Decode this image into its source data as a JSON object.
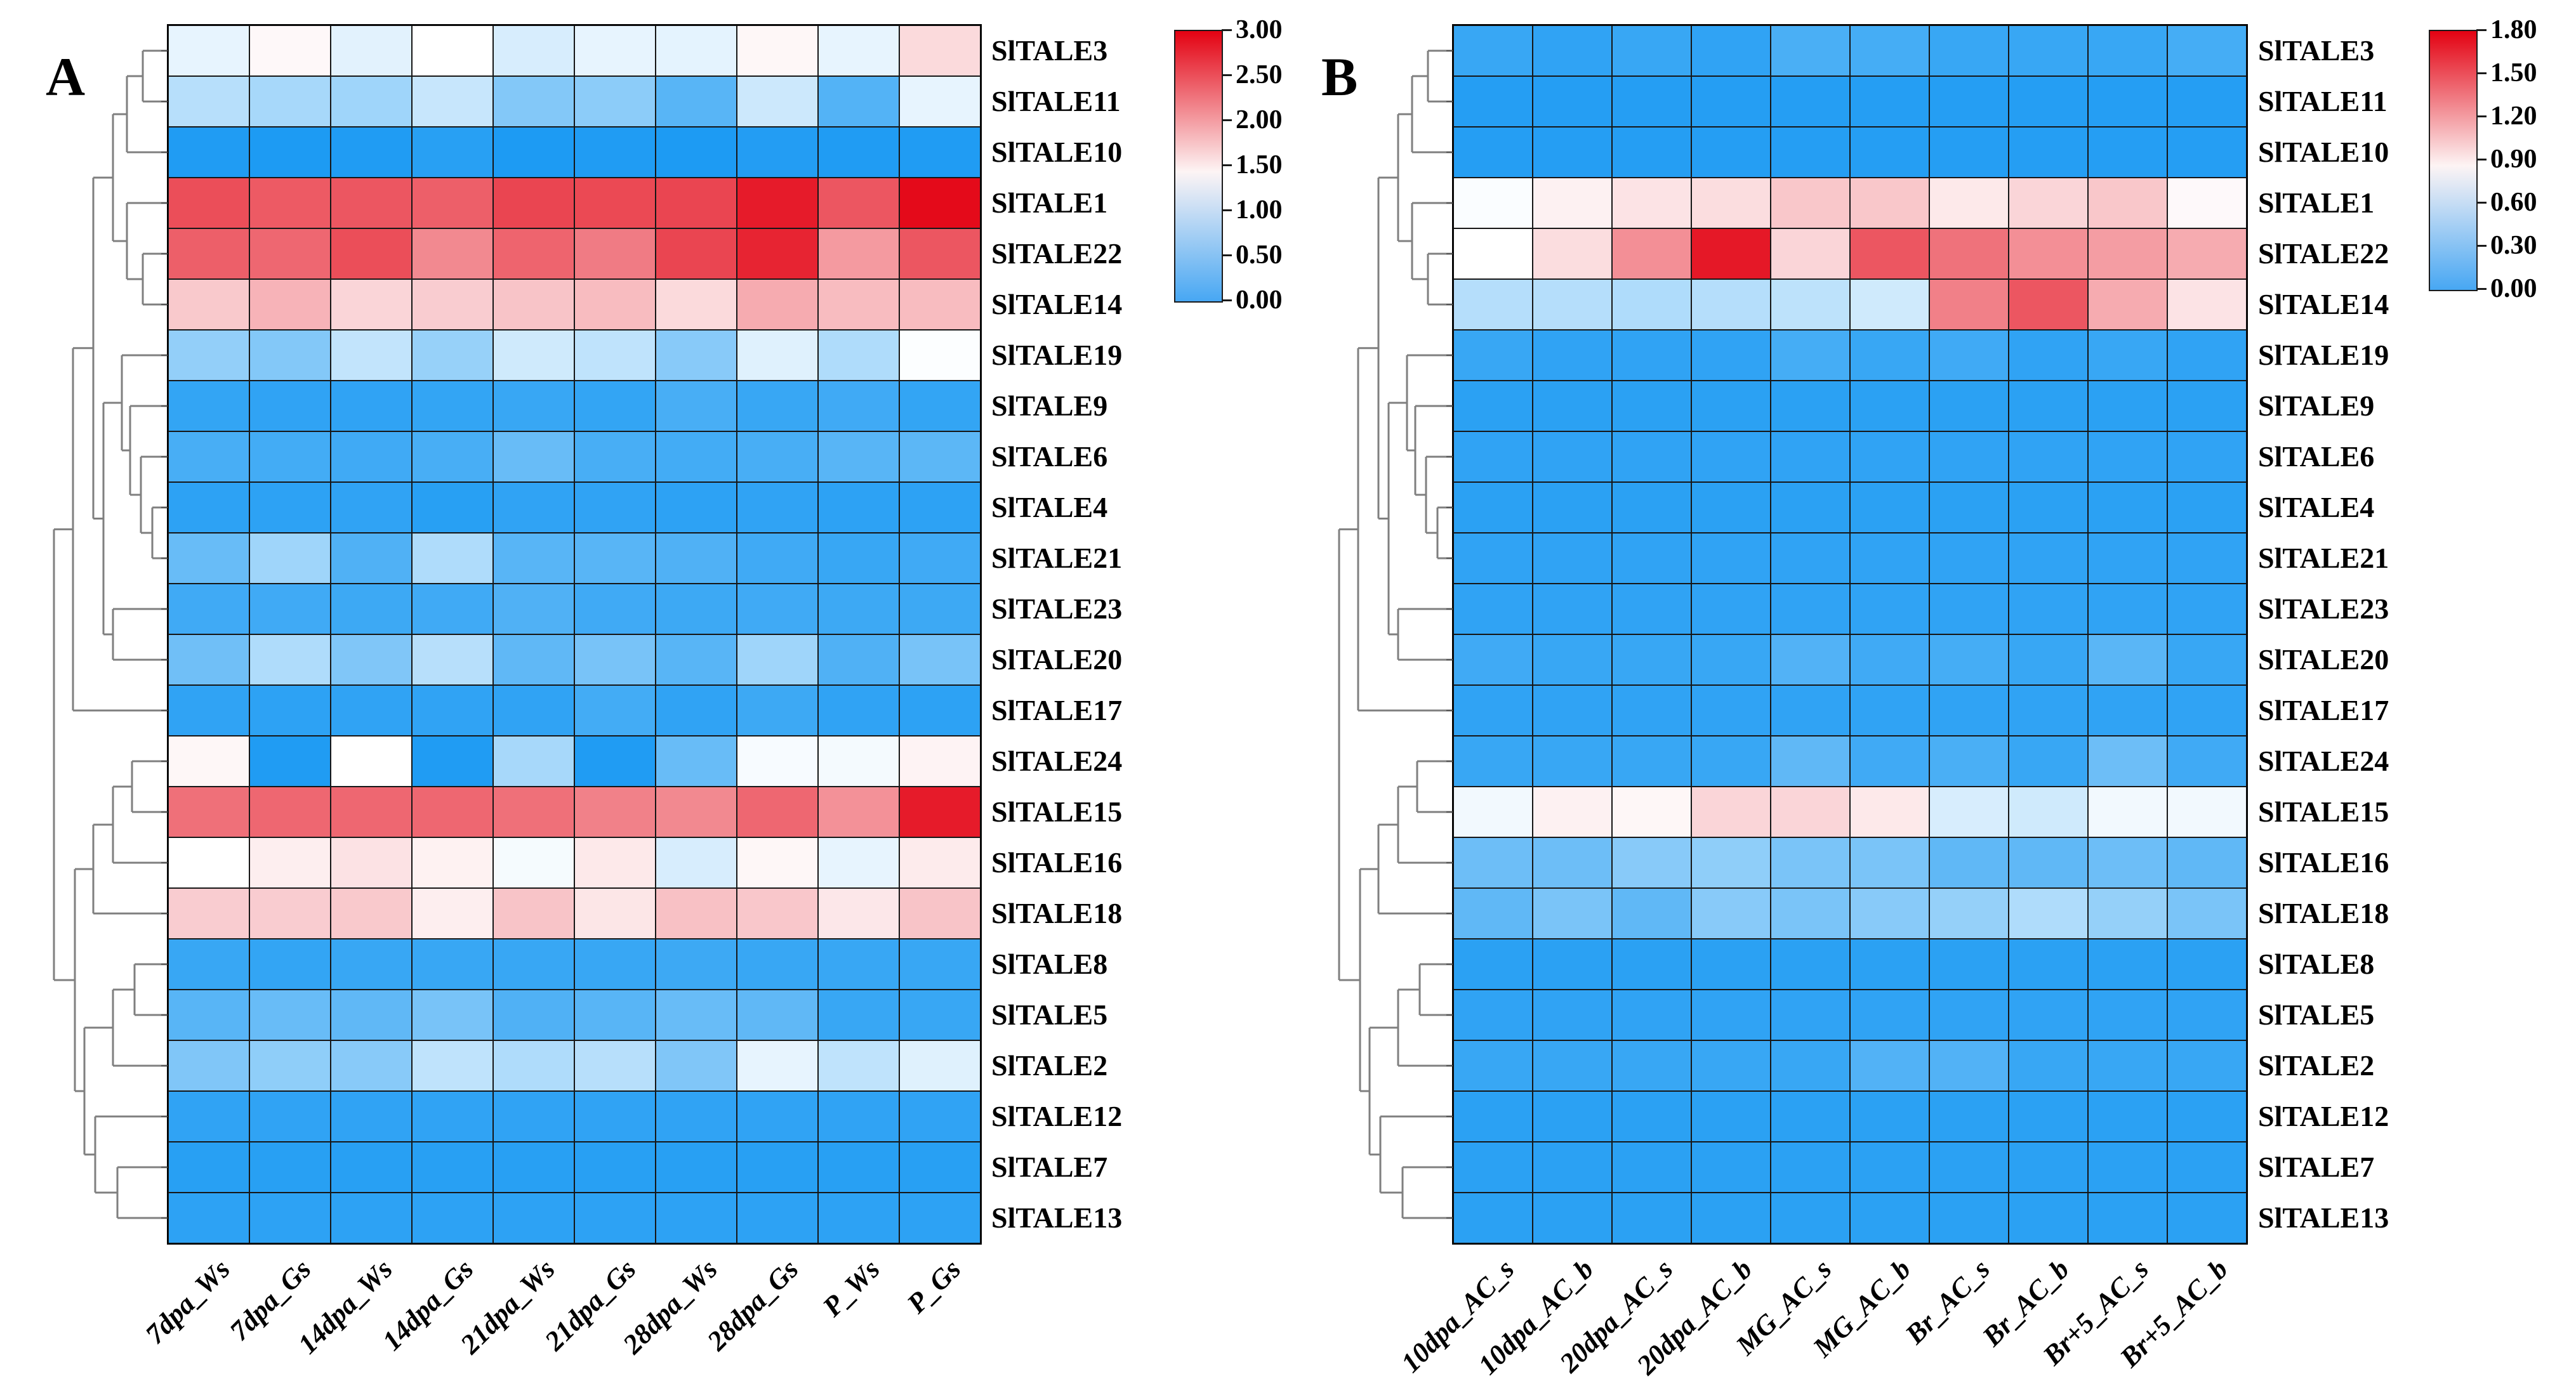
{
  "figure_title": "",
  "chart_data": [
    {
      "type": "heatmap",
      "panel_label": "A",
      "columns": [
        "7dpa_Ws",
        "7dpa_Gs",
        "14dpa_Ws",
        "14dpa_Gs",
        "21dpa_Ws",
        "21dpa_Gs",
        "28dpa_Ws",
        "28dpa_Gs",
        "P_Ws",
        "P_Gs"
      ],
      "rows": [
        "SlTALE3",
        "SlTALE11",
        "SlTALE10",
        "SlTALE1",
        "SlTALE22",
        "SlTALE14",
        "SlTALE19",
        "SlTALE9",
        "SlTALE6",
        "SlTALE4",
        "SlTALE21",
        "SlTALE23",
        "SlTALE20",
        "SlTALE17",
        "SlTALE24",
        "SlTALE15",
        "SlTALE16",
        "SlTALE18",
        "SlTALE8",
        "SlTALE5",
        "SlTALE2",
        "SlTALE12",
        "SlTALE7",
        "SlTALE13"
      ],
      "values": [
        [
          1.35,
          1.54,
          1.32,
          1.5,
          1.25,
          1.35,
          1.33,
          1.55,
          1.35,
          1.72
        ],
        [
          1.05,
          0.95,
          0.9,
          1.15,
          0.72,
          0.78,
          0.45,
          1.18,
          0.42,
          1.35
        ],
        [
          0.1,
          0.08,
          0.1,
          0.15,
          0.08,
          0.1,
          0.08,
          0.12,
          0.1,
          0.1
        ],
        [
          2.55,
          2.48,
          2.5,
          2.45,
          2.6,
          2.58,
          2.6,
          2.85,
          2.5,
          2.95
        ],
        [
          2.45,
          2.4,
          2.55,
          2.2,
          2.42,
          2.28,
          2.6,
          2.8,
          2.1,
          2.5
        ],
        [
          1.82,
          1.95,
          1.75,
          1.8,
          1.85,
          1.9,
          1.72,
          2.0,
          1.9,
          1.9
        ],
        [
          0.82,
          0.72,
          1.12,
          0.85,
          1.2,
          1.1,
          0.75,
          1.3,
          1.0,
          1.48
        ],
        [
          0.22,
          0.2,
          0.2,
          0.22,
          0.25,
          0.22,
          0.35,
          0.25,
          0.3,
          0.22
        ],
        [
          0.35,
          0.32,
          0.3,
          0.35,
          0.55,
          0.35,
          0.32,
          0.35,
          0.45,
          0.48
        ],
        [
          0.18,
          0.18,
          0.2,
          0.15,
          0.2,
          0.2,
          0.18,
          0.2,
          0.18,
          0.18
        ],
        [
          0.55,
          0.9,
          0.4,
          1.0,
          0.45,
          0.45,
          0.4,
          0.3,
          0.25,
          0.3
        ],
        [
          0.3,
          0.3,
          0.28,
          0.3,
          0.4,
          0.3,
          0.28,
          0.3,
          0.28,
          0.28
        ],
        [
          0.6,
          1.0,
          0.7,
          1.05,
          0.5,
          0.65,
          0.45,
          0.9,
          0.4,
          0.65
        ],
        [
          0.2,
          0.18,
          0.2,
          0.2,
          0.2,
          0.32,
          0.2,
          0.28,
          0.2,
          0.18
        ],
        [
          1.55,
          0.1,
          1.5,
          0.1,
          0.95,
          0.1,
          0.55,
          1.45,
          1.43,
          1.57
        ],
        [
          2.35,
          2.4,
          2.4,
          2.4,
          2.35,
          2.25,
          2.2,
          2.4,
          2.15,
          2.85
        ],
        [
          1.5,
          1.6,
          1.67,
          1.58,
          1.44,
          1.63,
          1.25,
          1.55,
          1.35,
          1.62
        ],
        [
          1.8,
          1.8,
          1.82,
          1.6,
          1.85,
          1.65,
          1.87,
          1.83,
          1.64,
          1.85
        ],
        [
          0.25,
          0.22,
          0.25,
          0.25,
          0.25,
          0.25,
          0.28,
          0.25,
          0.25,
          0.25
        ],
        [
          0.45,
          0.55,
          0.5,
          0.65,
          0.4,
          0.45,
          0.55,
          0.5,
          0.25,
          0.25
        ],
        [
          0.7,
          0.8,
          0.75,
          1.1,
          1.0,
          1.05,
          0.7,
          1.35,
          1.1,
          1.3
        ],
        [
          0.2,
          0.2,
          0.2,
          0.2,
          0.2,
          0.2,
          0.2,
          0.2,
          0.2,
          0.2
        ],
        [
          0.15,
          0.15,
          0.15,
          0.15,
          0.15,
          0.15,
          0.15,
          0.15,
          0.15,
          0.15
        ],
        [
          0.18,
          0.18,
          0.18,
          0.18,
          0.18,
          0.18,
          0.18,
          0.18,
          0.18,
          0.18
        ]
      ],
      "vmin": 0,
      "vmax": 3,
      "colorbar_ticks": [
        "3.00",
        "2.50",
        "2.00",
        "1.50",
        "1.00",
        "0.50",
        "0.00"
      ],
      "legend_position": "right",
      "grid": true,
      "colors": {
        "low": "#1095F2",
        "mid": "#FFFFFF",
        "high": "#E30212",
        "bar_bottom": "#47A7F3"
      }
    },
    {
      "type": "heatmap",
      "panel_label": "B",
      "columns": [
        "10dpa_AC_s",
        "10dpa_AC_b",
        "20dpa_AC_s",
        "20dpa_AC_b",
        "MG_AC_s",
        "MG_AC_b",
        "Br_AC_s",
        "Br_AC_b",
        "Br+5_AC_s",
        "Br+5_AC_b"
      ],
      "rows": [
        "SlTALE3",
        "SlTALE11",
        "SlTALE10",
        "SlTALE1",
        "SlTALE22",
        "SlTALE14",
        "SlTALE19",
        "SlTALE9",
        "SlTALE6",
        "SlTALE4",
        "SlTALE21",
        "SlTALE23",
        "SlTALE20",
        "SlTALE17",
        "SlTALE24",
        "SlTALE15",
        "SlTALE16",
        "SlTALE18",
        "SlTALE8",
        "SlTALE5",
        "SlTALE2",
        "SlTALE12",
        "SlTALE7",
        "SlTALE13"
      ],
      "values": [
        [
          0.15,
          0.12,
          0.15,
          0.12,
          0.22,
          0.2,
          0.15,
          0.15,
          0.15,
          0.2
        ],
        [
          0.08,
          0.08,
          0.08,
          0.08,
          0.08,
          0.08,
          0.08,
          0.08,
          0.08,
          0.08
        ],
        [
          0.08,
          0.08,
          0.08,
          0.08,
          0.08,
          0.08,
          0.08,
          0.08,
          0.08,
          0.08
        ],
        [
          0.88,
          0.95,
          1.0,
          1.02,
          1.1,
          1.1,
          0.98,
          1.05,
          1.1,
          0.92
        ],
        [
          0.9,
          1.02,
          1.3,
          1.72,
          1.05,
          1.5,
          1.4,
          1.3,
          1.25,
          1.2
        ],
        [
          0.62,
          0.62,
          0.6,
          0.62,
          0.65,
          0.72,
          1.35,
          1.5,
          1.2,
          1.0
        ],
        [
          0.15,
          0.12,
          0.12,
          0.12,
          0.2,
          0.15,
          0.18,
          0.12,
          0.15,
          0.12
        ],
        [
          0.1,
          0.1,
          0.1,
          0.1,
          0.1,
          0.1,
          0.1,
          0.1,
          0.1,
          0.1
        ],
        [
          0.12,
          0.12,
          0.12,
          0.12,
          0.12,
          0.12,
          0.12,
          0.12,
          0.12,
          0.12
        ],
        [
          0.1,
          0.1,
          0.1,
          0.1,
          0.1,
          0.1,
          0.1,
          0.1,
          0.1,
          0.1
        ],
        [
          0.12,
          0.12,
          0.12,
          0.12,
          0.12,
          0.12,
          0.12,
          0.12,
          0.12,
          0.12
        ],
        [
          0.12,
          0.12,
          0.12,
          0.12,
          0.12,
          0.12,
          0.12,
          0.12,
          0.12,
          0.12
        ],
        [
          0.18,
          0.15,
          0.15,
          0.15,
          0.25,
          0.18,
          0.2,
          0.15,
          0.28,
          0.15
        ],
        [
          0.12,
          0.12,
          0.12,
          0.12,
          0.12,
          0.12,
          0.12,
          0.12,
          0.12,
          0.12
        ],
        [
          0.15,
          0.15,
          0.15,
          0.15,
          0.3,
          0.18,
          0.22,
          0.15,
          0.35,
          0.18
        ],
        [
          0.85,
          0.95,
          0.93,
          1.05,
          1.05,
          0.98,
          0.75,
          0.72,
          0.85,
          0.85
        ],
        [
          0.35,
          0.35,
          0.45,
          0.48,
          0.4,
          0.4,
          0.3,
          0.3,
          0.35,
          0.3
        ],
        [
          0.3,
          0.4,
          0.3,
          0.45,
          0.4,
          0.45,
          0.5,
          0.6,
          0.5,
          0.4
        ],
        [
          0.1,
          0.1,
          0.1,
          0.1,
          0.1,
          0.1,
          0.1,
          0.1,
          0.1,
          0.1
        ],
        [
          0.12,
          0.12,
          0.12,
          0.12,
          0.12,
          0.12,
          0.12,
          0.12,
          0.12,
          0.12
        ],
        [
          0.15,
          0.15,
          0.15,
          0.15,
          0.15,
          0.25,
          0.25,
          0.15,
          0.15,
          0.15
        ],
        [
          0.1,
          0.1,
          0.1,
          0.1,
          0.1,
          0.1,
          0.1,
          0.1,
          0.1,
          0.1
        ],
        [
          0.1,
          0.1,
          0.1,
          0.1,
          0.1,
          0.1,
          0.1,
          0.1,
          0.1,
          0.1
        ],
        [
          0.1,
          0.1,
          0.1,
          0.1,
          0.1,
          0.1,
          0.1,
          0.1,
          0.1,
          0.1
        ]
      ],
      "vmin": 0,
      "vmax": 1.8,
      "colorbar_ticks": [
        "1.80",
        "1.50",
        "1.20",
        "0.90",
        "0.60",
        "0.30",
        "0.00"
      ],
      "legend_position": "right",
      "grid": true,
      "colors": {
        "low": "#1095F2",
        "mid": "#FFFFFF",
        "high": "#E30212",
        "bar_bottom": "#47A7F3"
      }
    }
  ],
  "dendrogram_tree": {
    "d": 180,
    "children": [
      {
        "d": 150,
        "children": [
          {
            "d": 118,
            "children": [
              {
                "d": 87,
                "children": [
                  {
                    "d": 65,
                    "children": [
                      {
                        "d": 40,
                        "children": [
                          0,
                          1
                        ]
                      },
                      2
                    ]
                  },
                  {
                    "d": 65,
                    "children": [
                      3,
                      {
                        "d": 40,
                        "children": [
                          4,
                          5
                        ]
                      }
                    ]
                  }
                ]
              },
              {
                "d": 102,
                "children": [
                  {
                    "d": 73,
                    "children": [
                      6,
                      {
                        "d": 60,
                        "children": [
                          7,
                          {
                            "d": 43,
                            "children": [
                              8,
                              {
                                "d": 25,
                                "children": [
                                  9,
                                  10
                                ]
                              }
                            ]
                          }
                        ]
                      }
                    ]
                  },
                  {
                    "d": 87,
                    "children": [
                      11,
                      12
                    ]
                  }
                ]
              }
            ]
          },
          13
        ]
      },
      {
        "d": 147,
        "children": [
          {
            "d": 118,
            "children": [
              {
                "d": 87,
                "children": [
                  {
                    "d": 57,
                    "children": [
                      14,
                      15
                    ]
                  },
                  16
                ]
              },
              17
            ]
          },
          {
            "d": 132,
            "children": [
              {
                "d": 87,
                "children": [
                  {
                    "d": 53,
                    "children": [
                      18,
                      19
                    ]
                  },
                  20
                ]
              },
              {
                "d": 115,
                "children": [
                  21,
                  {
                    "d": 80,
                    "children": [
                      22,
                      23
                    ]
                  }
                ]
              }
            ]
          }
        ]
      }
    ]
  }
}
